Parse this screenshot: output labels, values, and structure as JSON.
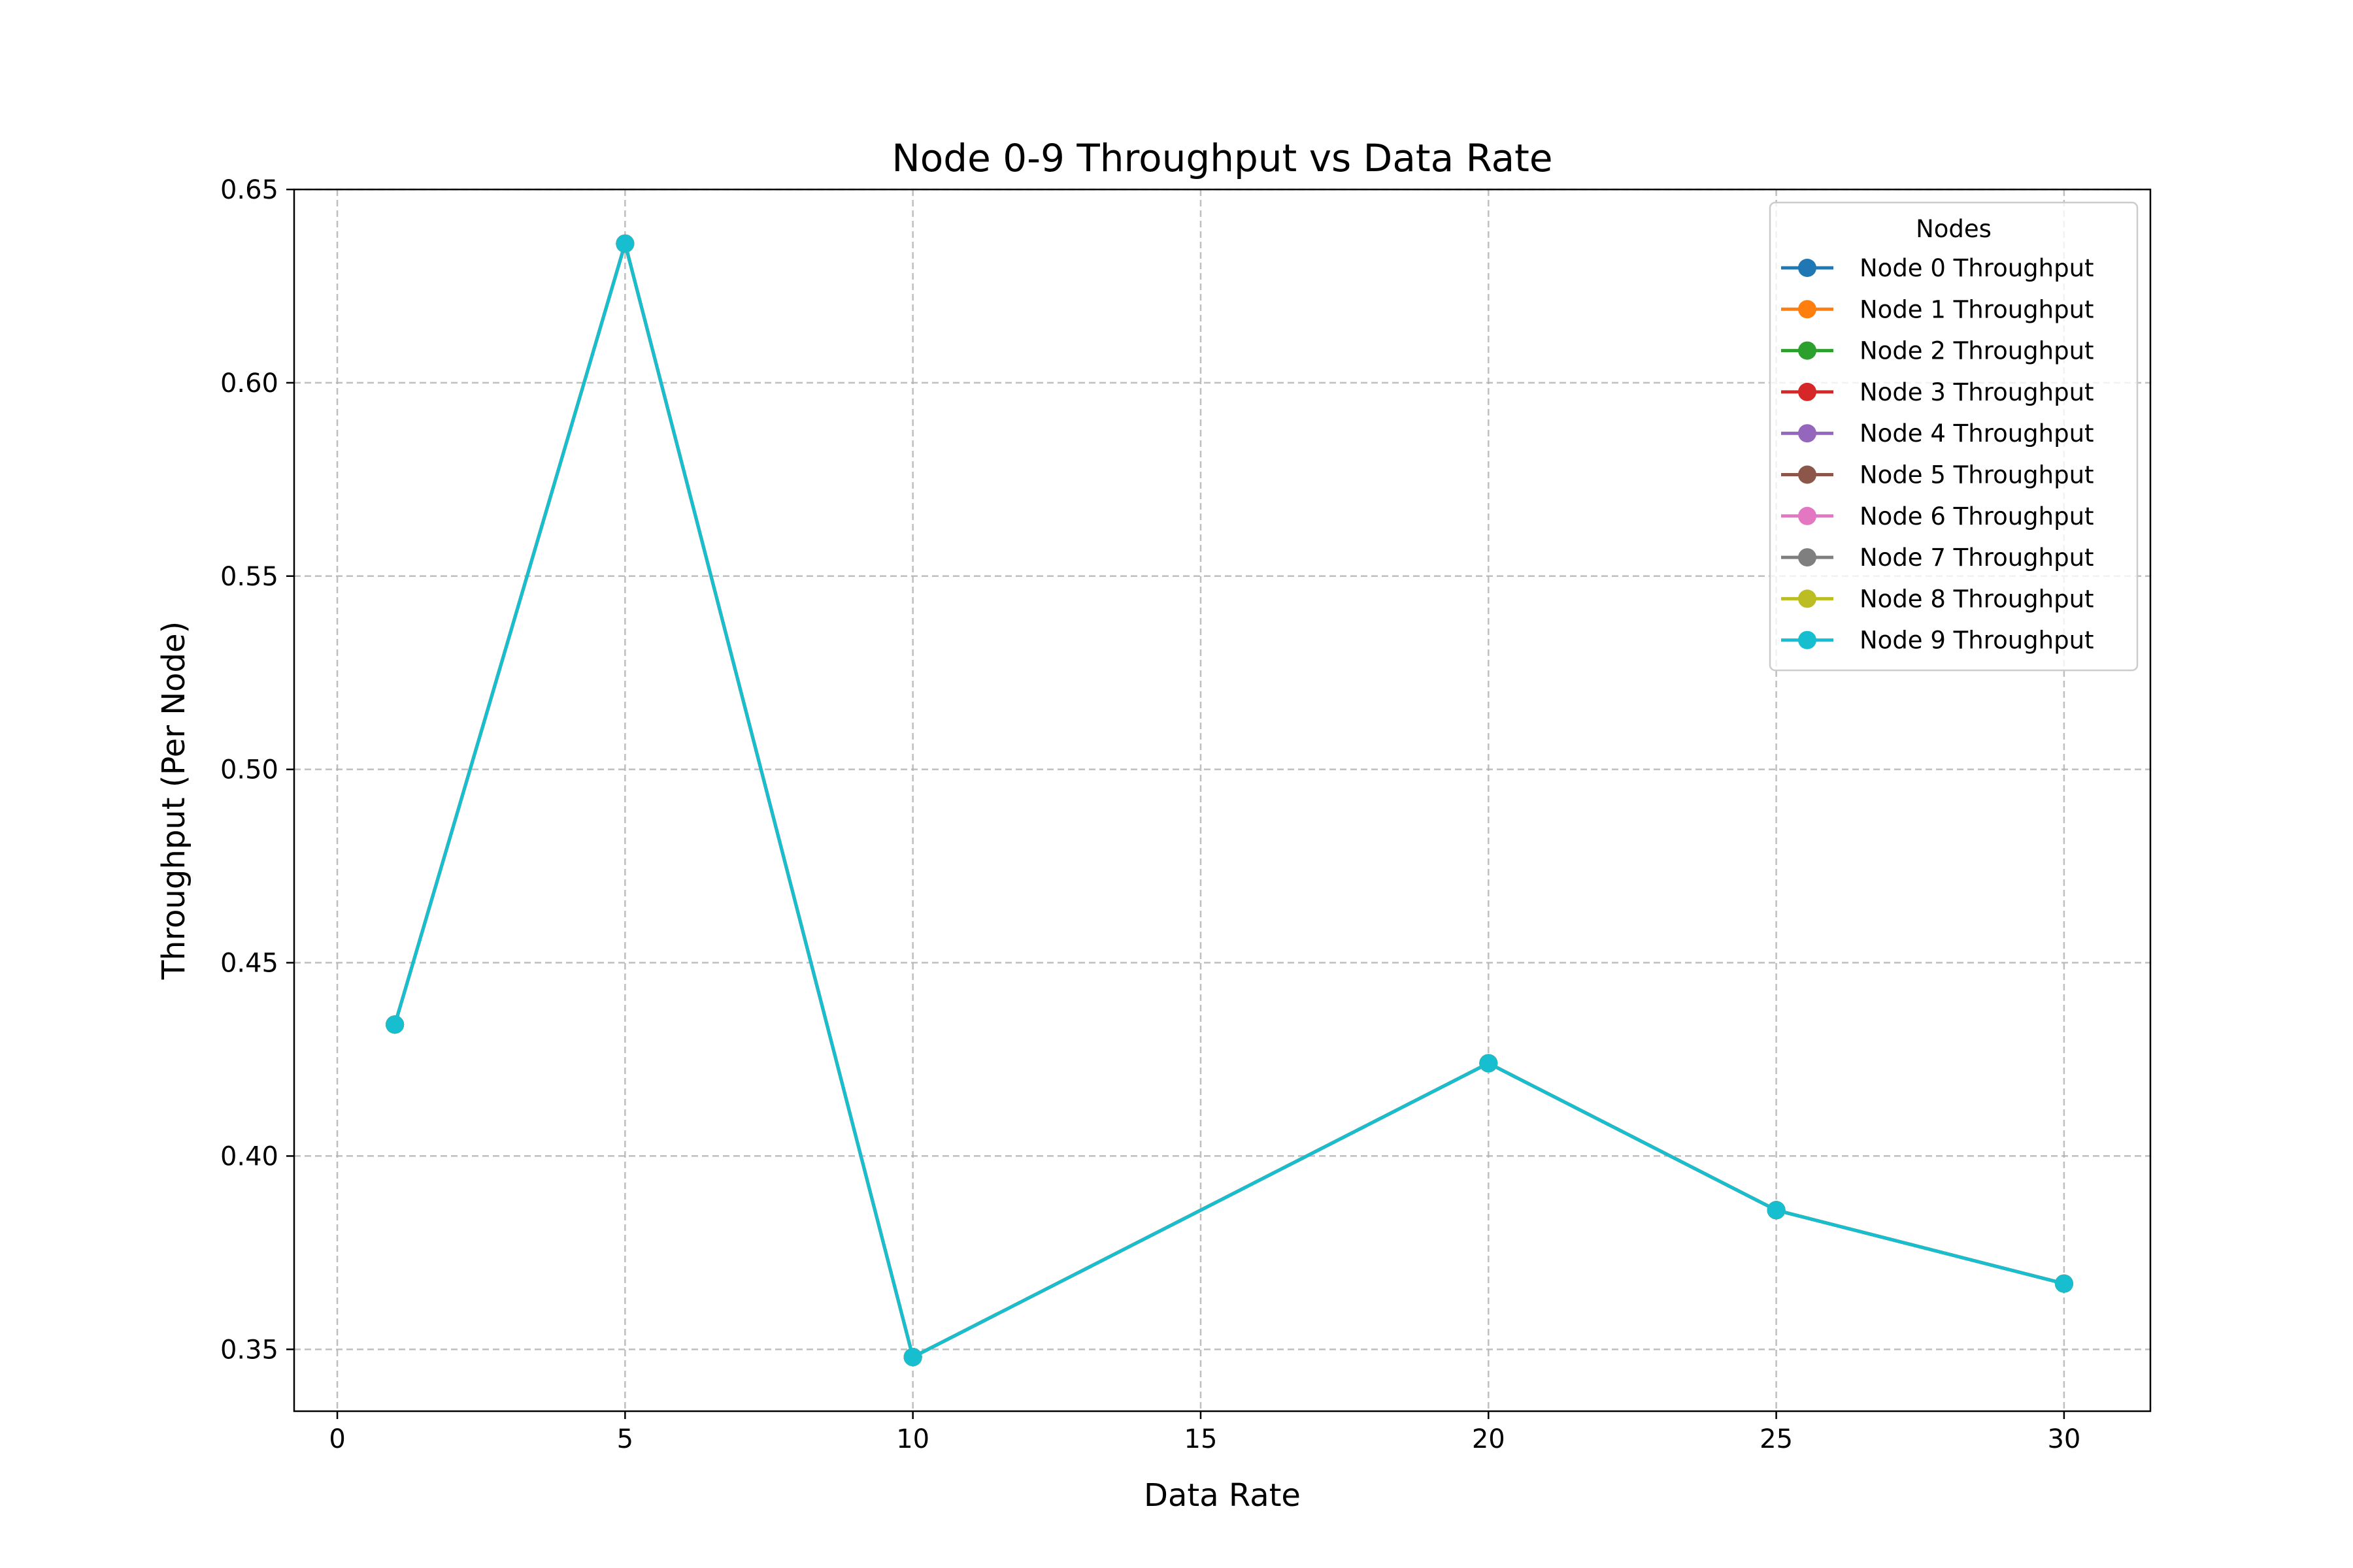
{
  "chart_data": {
    "type": "line",
    "title": "Node 0-9 Throughput vs Data Rate",
    "xlabel": "Data Rate",
    "ylabel": "Throughput (Per Node)",
    "xlim": [
      -0.75,
      31.5
    ],
    "ylim": [
      0.334,
      0.65
    ],
    "xticks": [
      0,
      5,
      10,
      15,
      20,
      25,
      30
    ],
    "yticks": [
      "0.35",
      "0.40",
      "0.45",
      "0.50",
      "0.55",
      "0.60",
      "0.65"
    ],
    "grid": true,
    "legend": {
      "title": "Nodes",
      "placement": "top-right"
    },
    "x": [
      1,
      5,
      10,
      20,
      25,
      30
    ],
    "series": [
      {
        "name": "Node 0 Throughput",
        "color": "#1f77b4",
        "values": [
          0.434,
          0.636,
          0.348,
          0.424,
          0.386,
          0.367
        ]
      },
      {
        "name": "Node 1 Throughput",
        "color": "#ff7f0e",
        "values": [
          0.434,
          0.636,
          0.348,
          0.424,
          0.386,
          0.367
        ]
      },
      {
        "name": "Node 2 Throughput",
        "color": "#2ca02c",
        "values": [
          0.434,
          0.636,
          0.348,
          0.424,
          0.386,
          0.367
        ]
      },
      {
        "name": "Node 3 Throughput",
        "color": "#d62728",
        "values": [
          0.434,
          0.636,
          0.348,
          0.424,
          0.386,
          0.367
        ]
      },
      {
        "name": "Node 4 Throughput",
        "color": "#9467bd",
        "values": [
          0.434,
          0.636,
          0.348,
          0.424,
          0.386,
          0.367
        ]
      },
      {
        "name": "Node 5 Throughput",
        "color": "#8c564b",
        "values": [
          0.434,
          0.636,
          0.348,
          0.424,
          0.386,
          0.367
        ]
      },
      {
        "name": "Node 6 Throughput",
        "color": "#e377c2",
        "values": [
          0.434,
          0.636,
          0.348,
          0.424,
          0.386,
          0.367
        ]
      },
      {
        "name": "Node 7 Throughput",
        "color": "#7f7f7f",
        "values": [
          0.434,
          0.636,
          0.348,
          0.424,
          0.386,
          0.367
        ]
      },
      {
        "name": "Node 8 Throughput",
        "color": "#bcbd22",
        "values": [
          0.434,
          0.636,
          0.348,
          0.424,
          0.386,
          0.367
        ]
      },
      {
        "name": "Node 9 Throughput",
        "color": "#17becf",
        "values": [
          0.434,
          0.636,
          0.348,
          0.424,
          0.386,
          0.367
        ]
      }
    ]
  }
}
